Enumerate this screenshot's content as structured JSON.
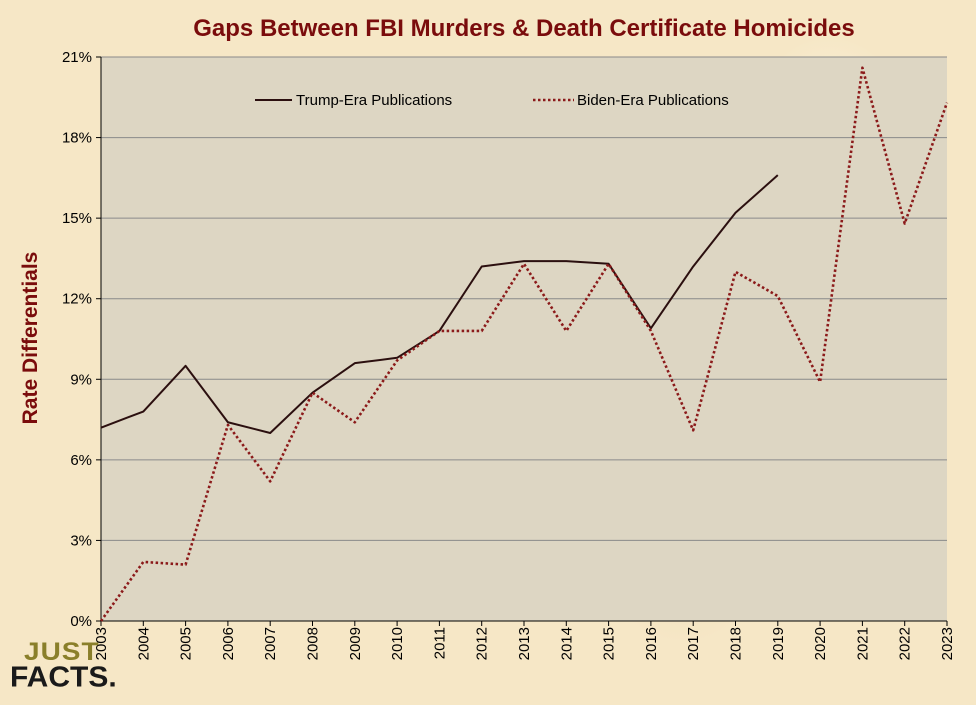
{
  "chart_data": {
    "type": "line",
    "title": "Gaps Between FBI Murders & Death Certificate Homicides",
    "xlabel": "",
    "ylabel": "Rate Differentials",
    "ylim": [
      0,
      21
    ],
    "y_ticks": [
      "0%",
      "3%",
      "6%",
      "9%",
      "12%",
      "15%",
      "18%",
      "21%"
    ],
    "y_tick_values": [
      0,
      3,
      6,
      9,
      12,
      15,
      18,
      21
    ],
    "x": [
      "2003",
      "2004",
      "2005",
      "2006",
      "2007",
      "2008",
      "2009",
      "2010",
      "2011",
      "2012",
      "2013",
      "2014",
      "2015",
      "2016",
      "2017",
      "2018",
      "2019",
      "2020",
      "2021",
      "2022",
      "2023"
    ],
    "grid": true,
    "legend_position": "top",
    "series": [
      {
        "name": "Trump-Era Publications",
        "style": "solid",
        "color": "#2b0f0f",
        "values": [
          7.2,
          7.8,
          9.5,
          7.4,
          7.0,
          8.5,
          9.6,
          9.8,
          10.8,
          13.2,
          13.4,
          13.4,
          13.3,
          10.9,
          13.2,
          15.2,
          16.6,
          null,
          null,
          null,
          null
        ]
      },
      {
        "name": "Biden-Era Publications",
        "style": "dotted",
        "color": "#8b1a1a",
        "values": [
          0.0,
          2.2,
          2.1,
          7.3,
          5.2,
          8.5,
          7.4,
          9.7,
          10.8,
          10.8,
          13.3,
          10.8,
          13.3,
          10.8,
          7.1,
          13.0,
          12.1,
          8.9,
          20.6,
          14.8,
          19.3
        ]
      }
    ]
  },
  "colors": {
    "plot_background": "#ddd6c3",
    "gridline": "#8a8a8a",
    "title": "#7a0c0c",
    "page_background": "#f6e7c6"
  },
  "logo": {
    "line1": "JUST",
    "line2": "FACTS."
  }
}
